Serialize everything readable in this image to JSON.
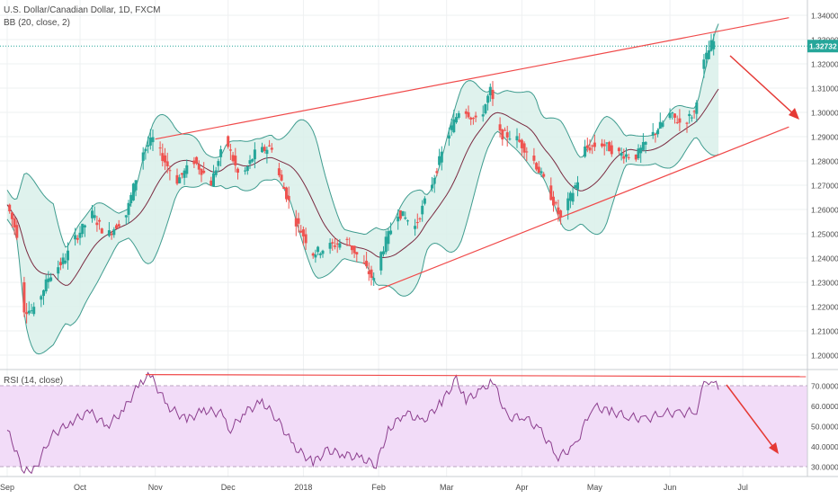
{
  "header": {
    "symbol_title": "U.S. Dollar/Canadian Dollar, 1D, FXCM",
    "bb_label": "BB (20, close, 2)",
    "rsi_label": "RSI (14, close)"
  },
  "price_badge": "1.32732",
  "colors": {
    "up": "#26a69a",
    "down": "#ef5350",
    "bb_band": "#3f9c8f",
    "bb_fill": "#d9f0ea",
    "bb_basis": "#7a2a40",
    "trendline": "#f04a4a",
    "rsi_line": "#8c3f8e",
    "rsi_fill": "#f2dcf8",
    "badge": "#26a69a"
  },
  "chart_data": [
    {
      "type": "candlestick",
      "title": "U.S. Dollar/Canadian Dollar, 1D, FXCM",
      "indicator": "BB (20, close, 2)",
      "ylim": [
        1.19,
        1.342
      ],
      "y_ticks": [
        "1.34000",
        "1.33000",
        "1.32000",
        "1.31000",
        "1.30000",
        "1.29000",
        "1.28000",
        "1.27000",
        "1.26000",
        "1.25000",
        "1.24000",
        "1.23000",
        "1.22000",
        "1.21000",
        "1.20000"
      ],
      "x_ticks": [
        "Sep",
        "Oct",
        "Nov",
        "Dec",
        "2018",
        "Feb",
        "Mar",
        "Apr",
        "May",
        "Jun",
        "Jul"
      ],
      "last_price": 1.32732,
      "close_path": [
        {
          "date": "2017-09-01",
          "value": 1.262
        },
        {
          "date": "2017-09-05",
          "value": 1.25
        },
        {
          "date": "2017-09-08",
          "value": 1.219
        },
        {
          "date": "2017-09-12",
          "value": 1.218
        },
        {
          "date": "2017-09-18",
          "value": 1.232
        },
        {
          "date": "2017-09-25",
          "value": 1.24
        },
        {
          "date": "2017-09-29",
          "value": 1.248
        },
        {
          "date": "2017-10-06",
          "value": 1.258
        },
        {
          "date": "2017-10-12",
          "value": 1.249
        },
        {
          "date": "2017-10-20",
          "value": 1.258
        },
        {
          "date": "2017-10-27",
          "value": 1.284
        },
        {
          "date": "2017-10-31",
          "value": 1.289
        },
        {
          "date": "2017-11-06",
          "value": 1.278
        },
        {
          "date": "2017-11-10",
          "value": 1.272
        },
        {
          "date": "2017-11-17",
          "value": 1.28
        },
        {
          "date": "2017-11-24",
          "value": 1.271
        },
        {
          "date": "2017-11-30",
          "value": 1.289
        },
        {
          "date": "2017-12-06",
          "value": 1.272
        },
        {
          "date": "2017-12-12",
          "value": 1.283
        },
        {
          "date": "2017-12-19",
          "value": 1.286
        },
        {
          "date": "2017-12-22",
          "value": 1.274
        },
        {
          "date": "2017-12-29",
          "value": 1.255
        },
        {
          "date": "2018-01-05",
          "value": 1.242
        },
        {
          "date": "2018-01-12",
          "value": 1.245
        },
        {
          "date": "2018-01-19",
          "value": 1.247
        },
        {
          "date": "2018-01-26",
          "value": 1.237
        },
        {
          "date": "2018-01-31",
          "value": 1.229
        },
        {
          "date": "2018-02-02",
          "value": 1.242
        },
        {
          "date": "2018-02-09",
          "value": 1.259
        },
        {
          "date": "2018-02-16",
          "value": 1.253
        },
        {
          "date": "2018-02-22",
          "value": 1.268
        },
        {
          "date": "2018-03-01",
          "value": 1.289
        },
        {
          "date": "2018-03-07",
          "value": 1.303
        },
        {
          "date": "2018-03-14",
          "value": 1.295
        },
        {
          "date": "2018-03-19",
          "value": 1.309
        },
        {
          "date": "2018-03-23",
          "value": 1.291
        },
        {
          "date": "2018-03-29",
          "value": 1.29
        },
        {
          "date": "2018-04-05",
          "value": 1.282
        },
        {
          "date": "2018-04-12",
          "value": 1.268
        },
        {
          "date": "2018-04-17",
          "value": 1.256
        },
        {
          "date": "2018-04-24",
          "value": 1.272
        },
        {
          "date": "2018-04-27",
          "value": 1.285
        },
        {
          "date": "2018-05-04",
          "value": 1.287
        },
        {
          "date": "2018-05-11",
          "value": 1.283
        },
        {
          "date": "2018-05-18",
          "value": 1.282
        },
        {
          "date": "2018-05-25",
          "value": 1.291
        },
        {
          "date": "2018-06-01",
          "value": 1.299
        },
        {
          "date": "2018-06-06",
          "value": 1.295
        },
        {
          "date": "2018-06-11",
          "value": 1.3
        },
        {
          "date": "2018-06-14",
          "value": 1.318
        },
        {
          "date": "2018-06-18",
          "value": 1.328
        },
        {
          "date": "2018-06-20",
          "value": 1.33
        },
        {
          "date": "2018-06-21",
          "value": 1.3273
        }
      ],
      "trendlines": [
        {
          "name": "upper",
          "from": {
            "date": "2017-11-01",
            "value": 1.289
          },
          "to": {
            "date": "2018-07-20",
            "value": 1.339
          }
        },
        {
          "name": "lower",
          "from": {
            "date": "2018-02-01",
            "value": 1.227
          },
          "to": {
            "date": "2018-07-20",
            "value": 1.294
          }
        }
      ]
    },
    {
      "type": "line",
      "title": "RSI (14, close)",
      "ylim": [
        25,
        76
      ],
      "y_ticks": [
        "70.0000",
        "60.0000",
        "50.0000",
        "40.0000",
        "30.0000"
      ],
      "bands": [
        30,
        70
      ],
      "values_path": [
        {
          "date": "2017-09-01",
          "value": 48
        },
        {
          "date": "2017-09-06",
          "value": 34
        },
        {
          "date": "2017-09-08",
          "value": 27
        },
        {
          "date": "2017-09-13",
          "value": 30
        },
        {
          "date": "2017-09-19",
          "value": 45
        },
        {
          "date": "2017-09-27",
          "value": 52
        },
        {
          "date": "2017-10-05",
          "value": 57
        },
        {
          "date": "2017-10-12",
          "value": 50
        },
        {
          "date": "2017-10-19",
          "value": 58
        },
        {
          "date": "2017-10-26",
          "value": 72
        },
        {
          "date": "2017-10-30",
          "value": 75
        },
        {
          "date": "2017-11-06",
          "value": 60
        },
        {
          "date": "2017-11-14",
          "value": 53
        },
        {
          "date": "2017-11-21",
          "value": 58
        },
        {
          "date": "2017-11-29",
          "value": 56
        },
        {
          "date": "2017-12-01",
          "value": 47
        },
        {
          "date": "2017-12-08",
          "value": 57
        },
        {
          "date": "2017-12-15",
          "value": 62
        },
        {
          "date": "2017-12-21",
          "value": 54
        },
        {
          "date": "2017-12-28",
          "value": 40
        },
        {
          "date": "2018-01-05",
          "value": 32
        },
        {
          "date": "2018-01-11",
          "value": 38
        },
        {
          "date": "2018-01-18",
          "value": 36
        },
        {
          "date": "2018-01-25",
          "value": 34
        },
        {
          "date": "2018-01-31",
          "value": 31
        },
        {
          "date": "2018-02-05",
          "value": 48
        },
        {
          "date": "2018-02-12",
          "value": 57
        },
        {
          "date": "2018-02-19",
          "value": 52
        },
        {
          "date": "2018-02-27",
          "value": 62
        },
        {
          "date": "2018-03-05",
          "value": 73
        },
        {
          "date": "2018-03-09",
          "value": 63
        },
        {
          "date": "2018-03-16",
          "value": 68
        },
        {
          "date": "2018-03-20",
          "value": 73
        },
        {
          "date": "2018-03-26",
          "value": 54
        },
        {
          "date": "2018-04-02",
          "value": 55
        },
        {
          "date": "2018-04-09",
          "value": 47
        },
        {
          "date": "2018-04-16",
          "value": 35
        },
        {
          "date": "2018-04-23",
          "value": 40
        },
        {
          "date": "2018-04-30",
          "value": 60
        },
        {
          "date": "2018-05-08",
          "value": 57
        },
        {
          "date": "2018-05-15",
          "value": 55
        },
        {
          "date": "2018-05-22",
          "value": 53
        },
        {
          "date": "2018-05-29",
          "value": 57
        },
        {
          "date": "2018-06-05",
          "value": 56
        },
        {
          "date": "2018-06-12",
          "value": 58
        },
        {
          "date": "2018-06-15",
          "value": 70
        },
        {
          "date": "2018-06-18",
          "value": 74
        },
        {
          "date": "2018-06-21",
          "value": 68
        }
      ],
      "trendlines": [
        {
          "name": "top",
          "from": {
            "date": "2017-10-28",
            "value": 75.5
          },
          "to": {
            "date": "2018-07-27",
            "value": 74.5
          }
        }
      ]
    }
  ]
}
